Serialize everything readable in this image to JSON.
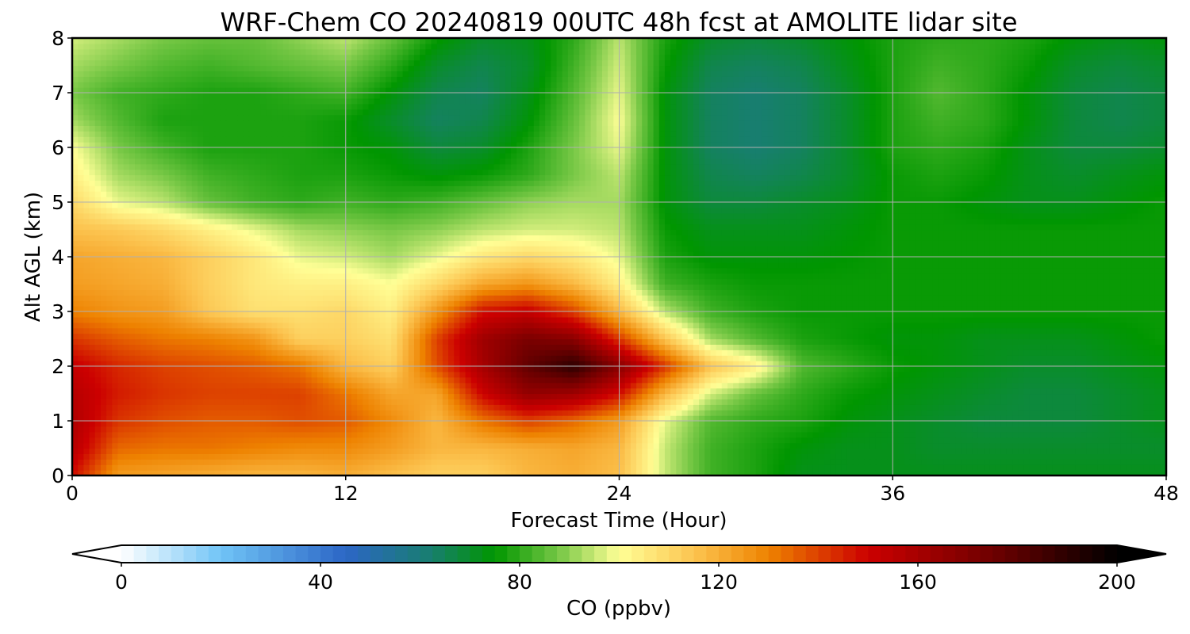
{
  "chart_data": {
    "type": "heatmap",
    "title": "WRF-Chem CO  20240819 00UTC 48h fcst at AMOLITE lidar site",
    "xlabel": "Forecast Time (Hour)",
    "ylabel": "Alt AGL (km)",
    "xlim": [
      0,
      48
    ],
    "ylim": [
      0,
      8
    ],
    "xticks": [
      "0",
      "12",
      "24",
      "36",
      "48"
    ],
    "yticks": [
      "0",
      "1",
      "2",
      "3",
      "4",
      "5",
      "6",
      "7",
      "8"
    ],
    "grid": true,
    "x": [
      0,
      2,
      4,
      6,
      8,
      10,
      12,
      14,
      16,
      18,
      20,
      22,
      24,
      26,
      28,
      30,
      32,
      34,
      36,
      38,
      40,
      42,
      44,
      46,
      48
    ],
    "y": [
      0,
      0.5,
      1,
      1.5,
      2,
      2.5,
      3,
      3.5,
      4,
      4.5,
      5,
      5.5,
      6,
      6.5,
      7,
      7.5,
      8
    ],
    "z": [
      [
        148,
        124,
        122,
        120,
        118,
        118,
        120,
        116,
        112,
        112,
        118,
        120,
        116,
        95,
        82,
        78,
        72,
        72,
        72,
        72,
        72,
        72,
        72,
        72,
        72
      ],
      [
        156,
        134,
        132,
        132,
        130,
        128,
        128,
        124,
        118,
        118,
        120,
        122,
        118,
        95,
        82,
        78,
        74,
        72,
        72,
        70,
        70,
        70,
        70,
        70,
        70
      ],
      [
        158,
        142,
        138,
        136,
        136,
        138,
        136,
        128,
        118,
        132,
        140,
        134,
        124,
        98,
        84,
        80,
        78,
        74,
        72,
        70,
        68,
        68,
        68,
        70,
        72
      ],
      [
        156,
        146,
        142,
        140,
        140,
        140,
        132,
        122,
        122,
        150,
        165,
        162,
        148,
        118,
        96,
        86,
        80,
        76,
        74,
        72,
        70,
        68,
        68,
        70,
        72
      ],
      [
        152,
        144,
        140,
        138,
        136,
        132,
        118,
        112,
        138,
        160,
        178,
        190,
        168,
        142,
        115,
        104,
        84,
        80,
        76,
        74,
        72,
        70,
        70,
        72,
        74
      ],
      [
        142,
        136,
        132,
        130,
        126,
        112,
        112,
        108,
        140,
        162,
        172,
        168,
        142,
        115,
        92,
        84,
        78,
        76,
        74,
        74,
        72,
        72,
        72,
        74,
        76
      ],
      [
        130,
        126,
        124,
        114,
        108,
        108,
        110,
        104,
        126,
        148,
        152,
        140,
        118,
        94,
        82,
        78,
        76,
        76,
        76,
        76,
        76,
        76,
        76,
        76,
        76
      ],
      [
        124,
        122,
        120,
        112,
        106,
        104,
        104,
        100,
        110,
        122,
        126,
        118,
        104,
        82,
        78,
        76,
        76,
        76,
        76,
        76,
        76,
        76,
        76,
        76,
        76
      ],
      [
        122,
        120,
        118,
        112,
        106,
        98,
        96,
        92,
        98,
        106,
        110,
        106,
        98,
        78,
        74,
        74,
        74,
        75,
        76,
        76,
        76,
        76,
        76,
        76,
        76
      ],
      [
        116,
        114,
        110,
        104,
        98,
        92,
        90,
        88,
        90,
        94,
        96,
        96,
        94,
        76,
        72,
        72,
        72,
        74,
        76,
        76,
        76,
        76,
        76,
        76,
        76
      ],
      [
        110,
        98,
        94,
        86,
        82,
        80,
        82,
        80,
        82,
        86,
        90,
        92,
        92,
        74,
        68,
        68,
        70,
        72,
        76,
        76,
        74,
        72,
        72,
        74,
        76
      ],
      [
        104,
        92,
        88,
        82,
        80,
        78,
        78,
        76,
        74,
        76,
        80,
        88,
        94,
        74,
        66,
        64,
        66,
        70,
        76,
        78,
        76,
        72,
        70,
        72,
        74
      ],
      [
        100,
        88,
        82,
        78,
        78,
        78,
        76,
        74,
        68,
        70,
        78,
        88,
        98,
        74,
        64,
        62,
        64,
        70,
        78,
        80,
        78,
        72,
        68,
        68,
        70
      ],
      [
        92,
        84,
        78,
        78,
        78,
        78,
        76,
        70,
        64,
        66,
        74,
        86,
        100,
        74,
        64,
        62,
        64,
        70,
        78,
        82,
        80,
        74,
        68,
        66,
        68
      ],
      [
        88,
        82,
        80,
        78,
        78,
        80,
        82,
        74,
        66,
        64,
        72,
        84,
        98,
        74,
        64,
        62,
        64,
        70,
        78,
        84,
        80,
        74,
        68,
        66,
        68
      ],
      [
        92,
        88,
        84,
        82,
        84,
        86,
        88,
        80,
        70,
        66,
        70,
        82,
        96,
        76,
        66,
        64,
        66,
        72,
        78,
        82,
        80,
        76,
        70,
        68,
        70
      ],
      [
        96,
        92,
        88,
        86,
        86,
        90,
        94,
        86,
        76,
        70,
        72,
        80,
        94,
        78,
        70,
        68,
        70,
        74,
        78,
        80,
        80,
        78,
        74,
        72,
        74
      ]
    ],
    "colorbar": {
      "label": "CO  (ppbv)",
      "min": 0,
      "max": 200,
      "ticks": [
        "0",
        "40",
        "80",
        "120",
        "160",
        "200"
      ],
      "extend": "both"
    }
  }
}
